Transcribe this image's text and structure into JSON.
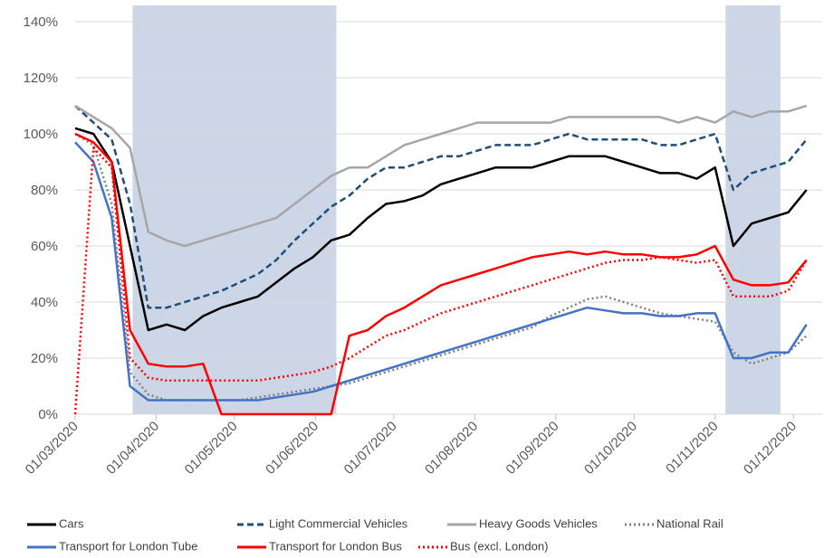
{
  "chart_data": {
    "type": "line",
    "x": [
      "01/03/2020",
      "08/03/2020",
      "15/03/2020",
      "22/03/2020",
      "29/03/2020",
      "05/04/2020",
      "12/04/2020",
      "19/04/2020",
      "26/04/2020",
      "03/05/2020",
      "10/05/2020",
      "17/05/2020",
      "24/05/2020",
      "31/05/2020",
      "07/06/2020",
      "14/06/2020",
      "21/06/2020",
      "28/06/2020",
      "05/07/2020",
      "12/07/2020",
      "19/07/2020",
      "26/07/2020",
      "02/08/2020",
      "09/08/2020",
      "16/08/2020",
      "23/08/2020",
      "30/08/2020",
      "06/09/2020",
      "13/09/2020",
      "20/09/2020",
      "27/09/2020",
      "04/10/2020",
      "11/10/2020",
      "18/10/2020",
      "25/10/2020",
      "01/11/2020",
      "08/11/2020",
      "15/11/2020",
      "22/11/2020",
      "29/11/2020",
      "06/12/2020"
    ],
    "series": [
      {
        "name": "Cars",
        "color": "#000000",
        "line_style": "solid",
        "values": [
          102,
          100,
          90,
          60,
          30,
          32,
          30,
          35,
          38,
          40,
          42,
          47,
          52,
          56,
          62,
          64,
          70,
          75,
          76,
          78,
          82,
          84,
          86,
          88,
          88,
          88,
          90,
          92,
          92,
          92,
          90,
          88,
          86,
          86,
          84,
          88,
          60,
          68,
          70,
          72,
          80
        ]
      },
      {
        "name": "Light Commercial Vehicles",
        "color": "#1f4e79",
        "line_style": "dashed",
        "values": [
          110,
          104,
          98,
          75,
          38,
          38,
          40,
          42,
          44,
          47,
          50,
          55,
          62,
          68,
          74,
          78,
          84,
          88,
          88,
          90,
          92,
          92,
          94,
          96,
          96,
          96,
          98,
          100,
          98,
          98,
          98,
          98,
          96,
          96,
          98,
          100,
          80,
          86,
          88,
          90,
          98
        ]
      },
      {
        "name": "Heavy Goods Vehicles",
        "color": "#a6a6a6",
        "line_style": "solid",
        "values": [
          110,
          106,
          102,
          95,
          65,
          62,
          60,
          62,
          64,
          66,
          68,
          70,
          75,
          80,
          85,
          88,
          88,
          92,
          96,
          98,
          100,
          102,
          104,
          104,
          104,
          104,
          104,
          106,
          106,
          106,
          106,
          106,
          106,
          104,
          106,
          104,
          108,
          106,
          108,
          108,
          110
        ]
      },
      {
        "name": "National Rail",
        "color": "#808080",
        "line_style": "dotted",
        "values": [
          100,
          96,
          75,
          15,
          7,
          5,
          5,
          5,
          5,
          5,
          6,
          7,
          8,
          9,
          10,
          11,
          13,
          15,
          17,
          19,
          21,
          23,
          25,
          27,
          29,
          31,
          35,
          38,
          41,
          42,
          40,
          38,
          36,
          35,
          34,
          33,
          22,
          18,
          20,
          22,
          28
        ]
      },
      {
        "name": "Transport for London Tube",
        "color": "#4472c4",
        "line_style": "solid",
        "values": [
          97,
          90,
          70,
          10,
          5,
          5,
          5,
          5,
          5,
          5,
          5,
          6,
          7,
          8,
          10,
          12,
          14,
          16,
          18,
          20,
          22,
          24,
          26,
          28,
          30,
          32,
          34,
          36,
          38,
          37,
          36,
          36,
          35,
          35,
          36,
          36,
          20,
          20,
          22,
          22,
          32
        ]
      },
      {
        "name": "Transport for London Bus",
        "color": "#ff0000",
        "line_style": "solid",
        "values": [
          100,
          97,
          90,
          30,
          18,
          17,
          17,
          18,
          0,
          0,
          0,
          0,
          0,
          0,
          0,
          28,
          30,
          35,
          38,
          42,
          46,
          48,
          50,
          52,
          54,
          56,
          57,
          58,
          57,
          58,
          57,
          57,
          56,
          56,
          57,
          60,
          48,
          46,
          46,
          47,
          55
        ]
      },
      {
        "name": "Bus (excl. London)",
        "color": "#ff0000",
        "line_style": "dotted",
        "values": [
          0,
          95,
          88,
          20,
          13,
          12,
          12,
          12,
          12,
          12,
          12,
          13,
          14,
          15,
          17,
          20,
          24,
          28,
          30,
          33,
          36,
          38,
          40,
          42,
          44,
          46,
          48,
          50,
          52,
          54,
          55,
          55,
          56,
          55,
          54,
          55,
          42,
          42,
          42,
          44,
          55
        ]
      }
    ],
    "shaded": [
      [
        "23/03/2020",
        "09/06/2020"
      ],
      [
        "05/11/2020",
        "26/11/2020"
      ]
    ],
    "shade_color": "#cdd6e7",
    "xlim": [
      "01/03/2020",
      "12/12/2020"
    ],
    "xticks": [
      "01/03/2020",
      "01/04/2020",
      "01/05/2020",
      "01/06/2020",
      "01/07/2020",
      "01/08/2020",
      "01/09/2020",
      "01/10/2020",
      "01/11/2020",
      "01/12/2020"
    ],
    "ylim": [
      0,
      140
    ],
    "yticks": [
      {
        "value": 0,
        "label": "0%"
      },
      {
        "value": 20,
        "label": "20%"
      },
      {
        "value": 40,
        "label": "40%"
      },
      {
        "value": 60,
        "label": "60%"
      },
      {
        "value": 80,
        "label": "80%"
      },
      {
        "value": 100,
        "label": "100%"
      },
      {
        "value": 120,
        "label": "120%"
      },
      {
        "value": 140,
        "label": "140%"
      }
    ],
    "grid": true
  }
}
